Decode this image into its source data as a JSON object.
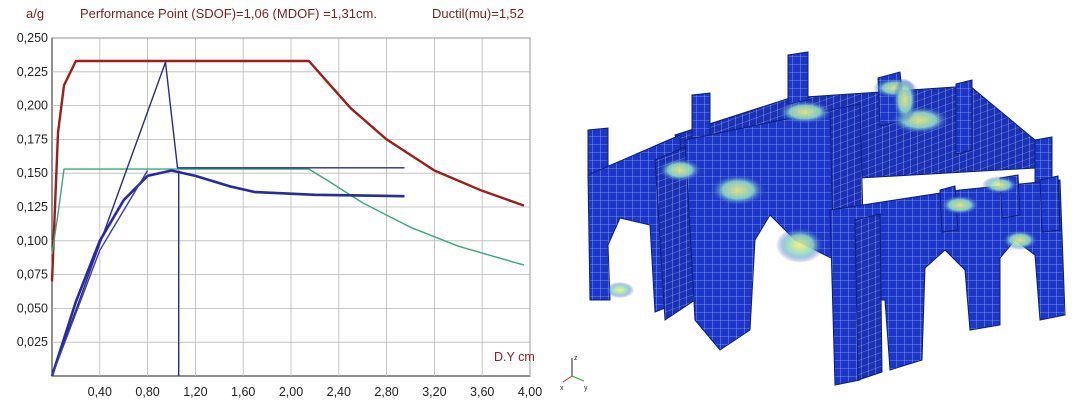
{
  "header": {
    "ylabel": "a/g",
    "performance": "Performance  Point (SDOF)=1,06    (MDOF) =1,31cm.",
    "ductility": "Ductil(mu)=1,52"
  },
  "chart_data": {
    "type": "line",
    "xlabel": "D.Y cm",
    "ylabel": "a/g",
    "xlim": [
      0,
      4.0
    ],
    "ylim": [
      0,
      0.25
    ],
    "grid": true,
    "x_ticks": [
      "0,40",
      "0,80",
      "1,20",
      "1,60",
      "2,00",
      "2,40",
      "2,80",
      "3,20",
      "3,60",
      "4,00"
    ],
    "y_ticks": [
      "0,025",
      "0,050",
      "0,075",
      "0,100",
      "0,125",
      "0,150",
      "0,175",
      "0,200",
      "0,225",
      "0,250"
    ],
    "series": [
      {
        "color": "#a01c1c",
        "points": [
          [
            0,
            0.07
          ],
          [
            0.05,
            0.18
          ],
          [
            0.1,
            0.215
          ],
          [
            0.2,
            0.233
          ],
          [
            2.15,
            0.233
          ],
          [
            2.3,
            0.218
          ],
          [
            2.5,
            0.198
          ],
          [
            2.8,
            0.175
          ],
          [
            3.2,
            0.152
          ],
          [
            3.6,
            0.137
          ],
          [
            3.95,
            0.126
          ]
        ]
      },
      {
        "color": "#3aa87a",
        "points": [
          [
            0,
            0.09
          ],
          [
            0.05,
            0.12
          ],
          [
            0.1,
            0.153
          ],
          [
            2.15,
            0.153
          ],
          [
            2.3,
            0.145
          ],
          [
            2.6,
            0.128
          ],
          [
            3.0,
            0.11
          ],
          [
            3.4,
            0.096
          ],
          [
            3.95,
            0.082
          ]
        ]
      },
      {
        "color": "#2a2a8a",
        "points": [
          [
            0,
            0
          ],
          [
            0.95,
            0.232
          ],
          [
            1.05,
            0.154
          ],
          [
            2.95,
            0.154
          ]
        ]
      },
      {
        "color": "#2a2aa0",
        "points": [
          [
            0,
            0
          ],
          [
            0.2,
            0.055
          ],
          [
            0.4,
            0.1
          ],
          [
            0.6,
            0.13
          ],
          [
            0.8,
            0.148
          ],
          [
            1.0,
            0.152
          ],
          [
            1.2,
            0.148
          ],
          [
            1.5,
            0.14
          ],
          [
            1.7,
            0.136
          ],
          [
            2.2,
            0.134
          ],
          [
            2.95,
            0.133
          ]
        ]
      },
      {
        "color": "#3a3ab0",
        "points": [
          [
            0,
            0
          ],
          [
            0.4,
            0.093
          ],
          [
            0.8,
            0.152
          ]
        ]
      },
      {
        "color": "#2a2a8a",
        "points": [
          [
            1.06,
            0
          ],
          [
            1.06,
            0.152
          ]
        ]
      }
    ]
  },
  "model": {
    "axes_labels": [
      "z",
      "x",
      "y"
    ]
  }
}
